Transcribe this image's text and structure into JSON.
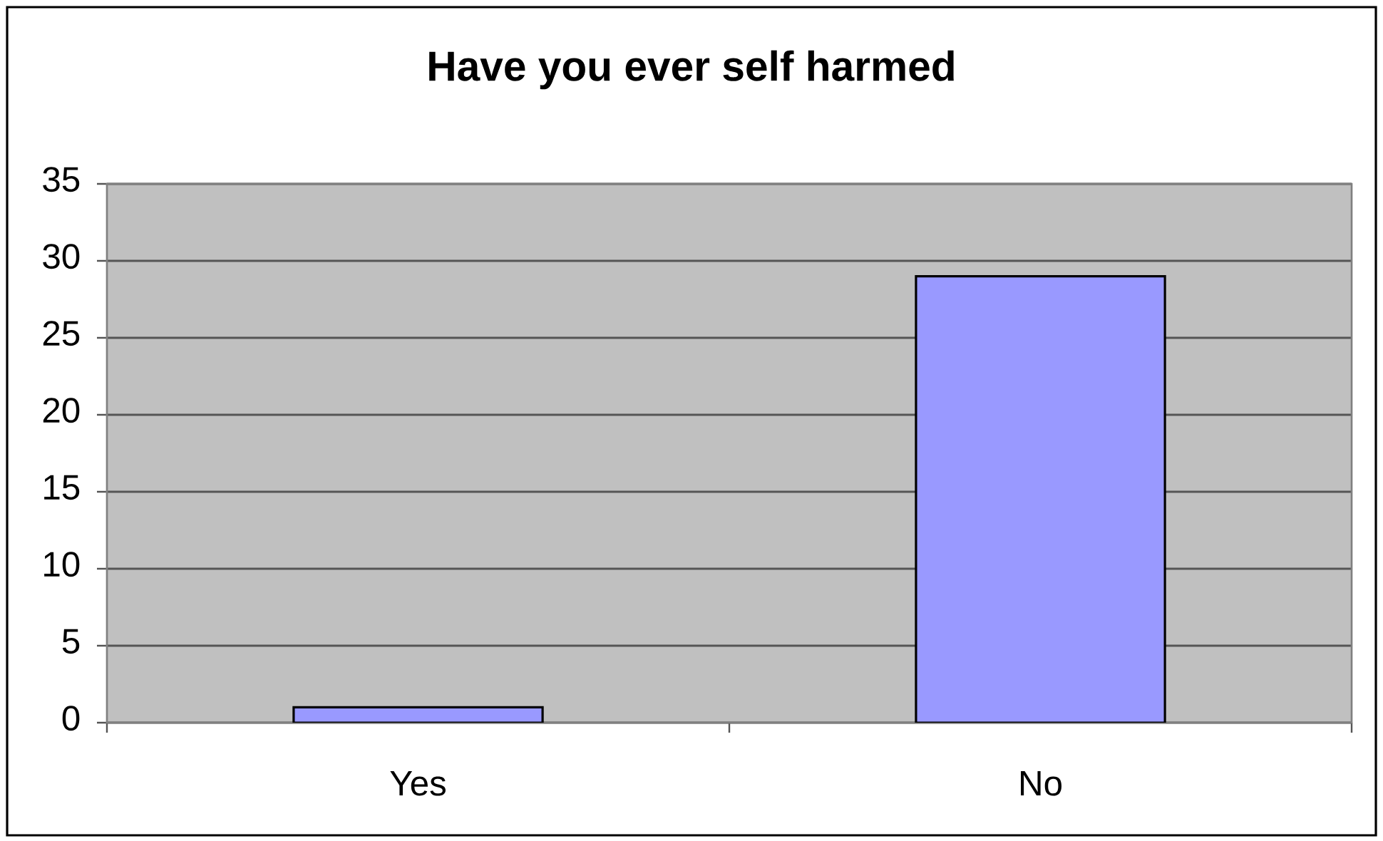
{
  "chart_data": {
    "type": "bar",
    "title": "Have you ever self harmed",
    "categories": [
      "Yes",
      "No"
    ],
    "values": [
      1,
      29
    ],
    "color": "#9999ff",
    "ylim": [
      0,
      35
    ],
    "yticks": [
      0,
      5,
      10,
      15,
      20,
      25,
      30,
      35
    ],
    "grid": "y"
  }
}
